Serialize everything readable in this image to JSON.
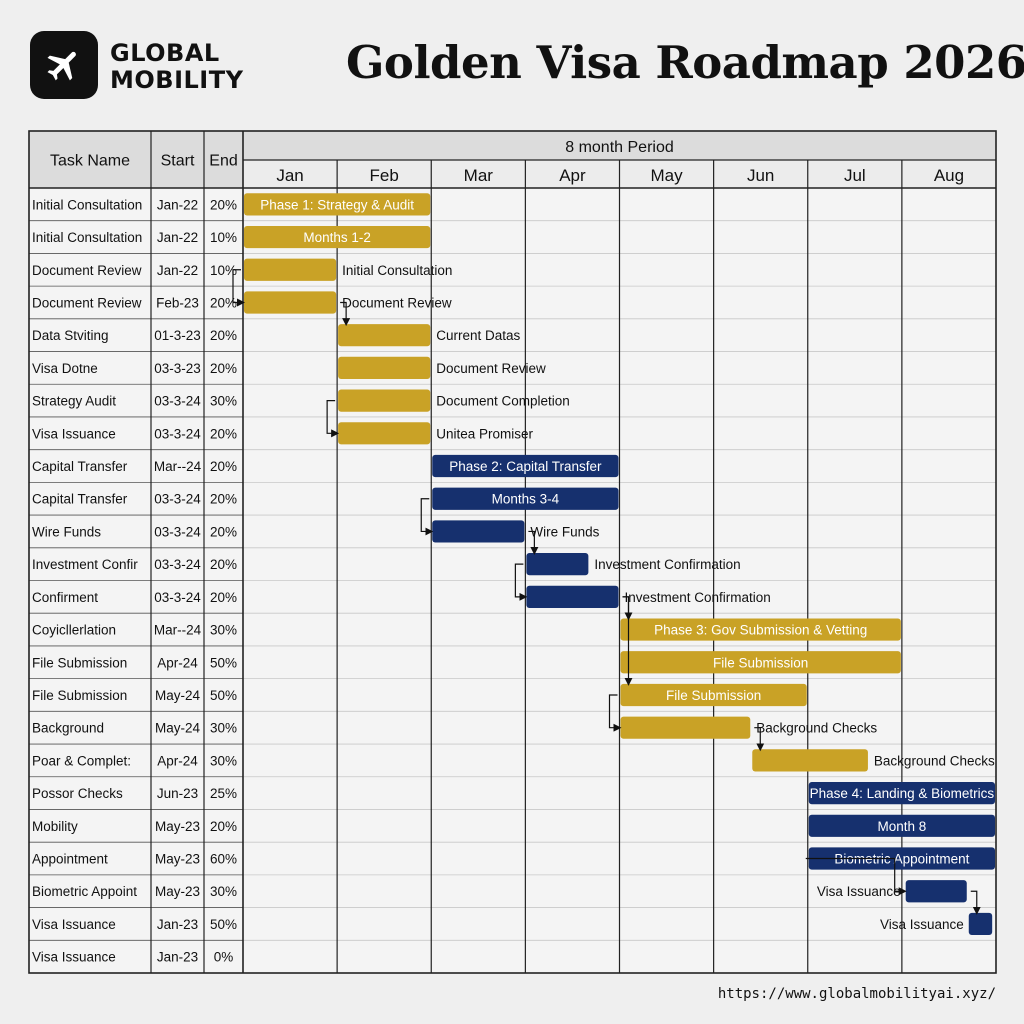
{
  "header": {
    "brand_line1": "GLOBAL",
    "brand_line2": "MOBILITY",
    "title": "Golden Visa Roadmap 2026",
    "logo_icon": "airplane-icon"
  },
  "footer": {
    "url": "https://www.globalmobilityai.xyz/"
  },
  "colors": {
    "gold": "#c9a226",
    "navy": "#16306e",
    "grid": "#222222",
    "header_bg": "#dcdcdc"
  },
  "chart_data": {
    "type": "gantt",
    "period_label": "8 month Period",
    "columns": [
      "Task Name",
      "Start",
      "End"
    ],
    "months": [
      "Jan",
      "Feb",
      "Mar",
      "Apr",
      "May",
      "Jun",
      "Jul",
      "Aug"
    ],
    "tasks": [
      {
        "name": "Initial Consultation",
        "start": "Jan-22",
        "end": "20%",
        "bar": [
          0,
          2
        ],
        "color": "gold",
        "label": "Phase 1: Strategy & Audit",
        "label_pos": "inside"
      },
      {
        "name": "Initial Consultation",
        "start": "Jan-22",
        "end": "10%",
        "bar": [
          0,
          2
        ],
        "color": "gold",
        "label": "Months 1-2",
        "label_pos": "inside"
      },
      {
        "name": "Document Review",
        "start": "Jan-22",
        "end": "10%",
        "bar": [
          0,
          1
        ],
        "color": "gold",
        "label": "Initial Consultation",
        "label_pos": "right"
      },
      {
        "name": "Document Review",
        "start": "Feb-23",
        "end": "20%",
        "bar": [
          0,
          1
        ],
        "color": "gold",
        "label": "Document Review",
        "label_pos": "right"
      },
      {
        "name": "Data Stviting",
        "start": "01-3-23",
        "end": "20%",
        "bar": [
          1,
          2
        ],
        "color": "gold",
        "label": "Current Datas",
        "label_pos": "right"
      },
      {
        "name": "Visa Dotne",
        "start": "03-3-23",
        "end": "20%",
        "bar": [
          1,
          2
        ],
        "color": "gold",
        "label": "Document Review",
        "label_pos": "right"
      },
      {
        "name": "Strategy Audit",
        "start": "03-3-24",
        "end": "30%",
        "bar": [
          1,
          2
        ],
        "color": "gold",
        "label": "Document Completion",
        "label_pos": "right"
      },
      {
        "name": "Visa Issuance",
        "start": "03-3-24",
        "end": "20%",
        "bar": [
          1,
          2
        ],
        "color": "gold",
        "label": "Unitea Promiser",
        "label_pos": "right"
      },
      {
        "name": "Capital Transfer",
        "start": "Mar--24",
        "end": "20%",
        "bar": [
          2,
          4
        ],
        "color": "navy",
        "label": "Phase 2: Capital Transfer",
        "label_pos": "inside"
      },
      {
        "name": "Capital Transfer",
        "start": "03-3-24",
        "end": "20%",
        "bar": [
          2,
          4
        ],
        "color": "navy",
        "label": "Months 3-4",
        "label_pos": "inside"
      },
      {
        "name": "Wire Funds",
        "start": "03-3-24",
        "end": "20%",
        "bar": [
          2,
          3
        ],
        "color": "navy",
        "label": "Wire Funds",
        "label_pos": "right"
      },
      {
        "name": "Investment Confir",
        "start": "03-3-24",
        "end": "20%",
        "bar": [
          3,
          3.68
        ],
        "color": "navy",
        "label": "Investment Confirmation",
        "label_pos": "right"
      },
      {
        "name": "Confirment",
        "start": "03-3-24",
        "end": "20%",
        "bar": [
          3,
          4
        ],
        "color": "navy",
        "label": "Investment Confirmation",
        "label_pos": "right"
      },
      {
        "name": "Coyicllerlation",
        "start": "Mar--24",
        "end": "30%",
        "bar": [
          4,
          7
        ],
        "color": "gold",
        "label": "Phase 3: Gov Submission & Vetting",
        "label_pos": "inside"
      },
      {
        "name": "File Submission",
        "start": "Apr-24",
        "end": "50%",
        "bar": [
          4,
          7
        ],
        "color": "gold",
        "label": "File Submission",
        "label_pos": "inside"
      },
      {
        "name": "File Submission",
        "start": "May-24",
        "end": "50%",
        "bar": [
          4,
          6
        ],
        "color": "gold",
        "label": "File Submission",
        "label_pos": "inside"
      },
      {
        "name": "Background",
        "start": "May-24",
        "end": "30%",
        "bar": [
          4,
          5.4
        ],
        "color": "gold",
        "label": "Background Checks",
        "label_pos": "right"
      },
      {
        "name": "Poar & Complet:",
        "start": "Apr-24",
        "end": "30%",
        "bar": [
          5.4,
          6.65
        ],
        "color": "gold",
        "label": "Background Checks",
        "label_pos": "right"
      },
      {
        "name": "Possor Checks",
        "start": "Jun-23",
        "end": "25%",
        "bar": [
          6,
          8
        ],
        "color": "navy",
        "label": "Phase 4: Landing & Biometrics",
        "label_pos": "inside"
      },
      {
        "name": "Mobility",
        "start": "May-23",
        "end": "20%",
        "bar": [
          6,
          8
        ],
        "color": "navy",
        "label": "Month 8",
        "label_pos": "inside"
      },
      {
        "name": "Appointment",
        "start": "May-23",
        "end": "60%",
        "bar": [
          6,
          8
        ],
        "color": "navy",
        "label": "Biometric Appointment",
        "label_pos": "inside"
      },
      {
        "name": "Biometric Appoint",
        "start": "May-23",
        "end": "30%",
        "bar": [
          7.03,
          7.7
        ],
        "color": "navy",
        "label": "Visa Issuance",
        "label_pos": "left"
      },
      {
        "name": "Visa Issuance",
        "start": "Jan-23",
        "end": "50%",
        "bar": [
          7.7,
          7.97
        ],
        "color": "navy",
        "label": "Visa Issuance",
        "label_pos": "left"
      },
      {
        "name": "Visa Issuance",
        "start": "Jan-23",
        "end": "0%",
        "bar": null,
        "color": "",
        "label": "",
        "label_pos": ""
      }
    ],
    "dependencies": [
      [
        2,
        3
      ],
      [
        3,
        4
      ],
      [
        6,
        7
      ],
      [
        9,
        10
      ],
      [
        10,
        11
      ],
      [
        11,
        12
      ],
      [
        12,
        13
      ],
      [
        12,
        15
      ],
      [
        15,
        16
      ],
      [
        16,
        17
      ],
      [
        20,
        21
      ],
      [
        21,
        22
      ]
    ]
  }
}
